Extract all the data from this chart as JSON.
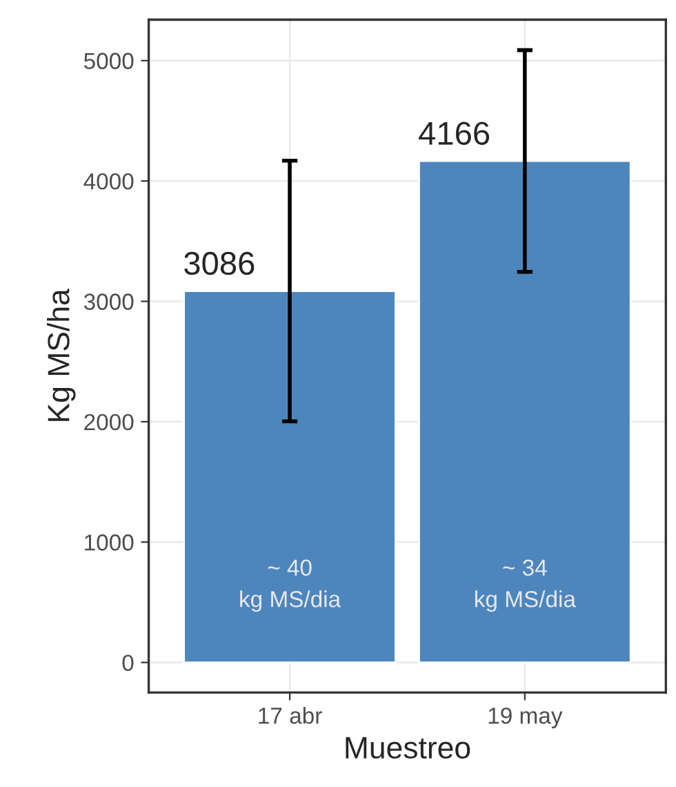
{
  "chart_data": {
    "type": "bar",
    "xlabel": "Muestreo",
    "ylabel": "Kg MS/ha",
    "categories": [
      "17 abr",
      "19 may"
    ],
    "values": [
      3086,
      4166
    ],
    "errors": [
      1083,
      921
    ],
    "color": "#4d86bc",
    "data_labels": true,
    "ylim": [
      -250,
      5340
    ],
    "yticks": [
      0,
      1000,
      2000,
      3000,
      4000,
      5000
    ],
    "grid": true,
    "annotations": [
      "~ 40\nkg MS/dia",
      "~ 34\nkg MS/dia"
    ]
  }
}
